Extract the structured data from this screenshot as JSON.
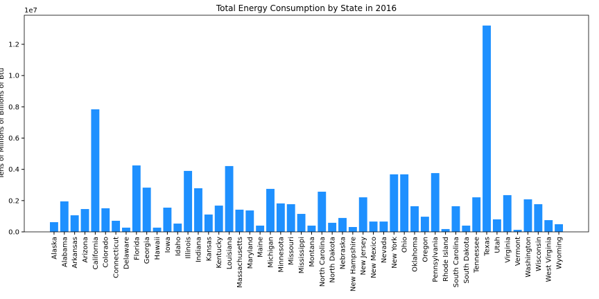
{
  "chart_data": {
    "type": "bar",
    "title": "Total Energy Consumption by State in 2016",
    "y_label": "Tens of Millions of Billions of Btu",
    "y_scale_label": "1e7",
    "categories": [
      "Alaska",
      "Alabama",
      "Arkansas",
      "Arizona",
      "California",
      "Colorado",
      "Connecticut",
      "Delaware",
      "Florida",
      "Georgia",
      "Hawaii",
      "Iowa",
      "Idaho",
      "Illinois",
      "Indiana",
      "Kansas",
      "Kentucky",
      "Louisiana",
      "Massachusetts",
      "Maryland",
      "Maine",
      "Michigan",
      "Minnesota",
      "Missouri",
      "Mississippi",
      "Montana",
      "North Carolina",
      "North Dakota",
      "Nebraska",
      "New Hampshire",
      "New Jersey",
      "New Mexico",
      "Nevada",
      "New York",
      "Ohio",
      "Oklahoma",
      "Oregon",
      "Pennsylvania",
      "Rhode Island",
      "South Carolina",
      "South Dakota",
      "Tennessee",
      "Texas",
      "Utah",
      "Virginia",
      "Vermont",
      "Washington",
      "Wisconsin",
      "West Virginia",
      "Wyoming"
    ],
    "values": [
      0.062,
      0.195,
      0.106,
      0.146,
      0.784,
      0.151,
      0.071,
      0.027,
      0.425,
      0.283,
      0.027,
      0.155,
      0.053,
      0.39,
      0.279,
      0.111,
      0.168,
      0.421,
      0.142,
      0.137,
      0.04,
      0.275,
      0.182,
      0.177,
      0.115,
      0.04,
      0.257,
      0.058,
      0.089,
      0.031,
      0.221,
      0.066,
      0.066,
      0.368,
      0.368,
      0.164,
      0.097,
      0.376,
      0.018,
      0.164,
      0.04,
      0.221,
      1.32,
      0.08,
      0.235,
      0.013,
      0.208,
      0.177,
      0.075,
      0.049
    ],
    "color": "#1e90ff",
    "ylim": [
      0,
      1.386
    ],
    "yticks": [
      {
        "value": 0,
        "label": "0.0"
      },
      {
        "value": 0.2,
        "label": "0.2"
      },
      {
        "value": 0.4,
        "label": "0.4"
      },
      {
        "value": 0.6,
        "label": "0.6"
      },
      {
        "value": 0.8,
        "label": "0.8"
      },
      {
        "value": 1,
        "label": "1.0"
      },
      {
        "value": 1.2,
        "label": "1.2"
      }
    ],
    "grid": false
  }
}
